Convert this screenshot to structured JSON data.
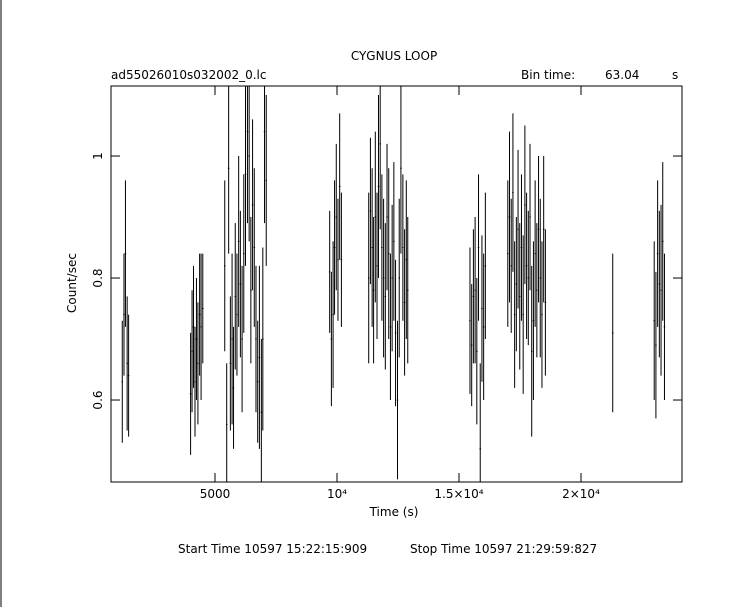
{
  "chart_data": {
    "type": "errorbar",
    "title": "CYGNUS LOOP",
    "file_label": "ad55026010s032002_0.lc",
    "bin_time_label": "Bin time:",
    "bin_time": 63.04,
    "bin_time_unit": "s",
    "x_label": "Time (s)",
    "y_label": "Count/sec",
    "start_time": "Start Time 10597  15:22:15:909",
    "stop_time": "Stop Time 10597  21:29:59:827",
    "color": "#000000",
    "xlim": [
      738,
      24139
    ],
    "ylim": [
      0.4656,
      1.1148
    ],
    "xticks": [
      5000,
      {
        "value": 10000,
        "label": "10⁴"
      },
      {
        "value": 15000,
        "label": "1.5×10⁴"
      },
      {
        "value": 20000,
        "label": "2×10⁴"
      }
    ],
    "yticks": [
      0.6,
      0.8,
      1
    ],
    "x": [
      1200,
      1270,
      1330,
      1400,
      1460,
      4000,
      4060,
      4120,
      4180,
      4240,
      4300,
      4370,
      4430,
      4500,
      5400,
      5480,
      5560,
      5630,
      5700,
      5760,
      5830,
      5900,
      5970,
      6040,
      6110,
      6180,
      6250,
      6330,
      6400,
      6470,
      6540,
      6610,
      6680,
      6750,
      6820,
      6900,
      6960,
      7030,
      7100,
      9700,
      9770,
      9840,
      9900,
      9970,
      10040,
      10110,
      10180,
      11300,
      11370,
      11440,
      11500,
      11570,
      11640,
      11700,
      11770,
      11840,
      11910,
      11980,
      12050,
      12120,
      12190,
      12260,
      12330,
      12400,
      12480,
      12550,
      12620,
      12700,
      12770,
      12840,
      12900,
      15450,
      15520,
      15590,
      15660,
      15730,
      15800,
      15870,
      15940,
      16010,
      16080,
      17000,
      17070,
      17140,
      17210,
      17280,
      17350,
      17420,
      17490,
      17560,
      17630,
      17700,
      17770,
      17840,
      17910,
      17980,
      18050,
      18120,
      18190,
      18260,
      18330,
      18400,
      18470,
      18540,
      21300,
      23000,
      23070,
      23140,
      23210,
      23280,
      23350,
      23420
    ],
    "values": [
      0.63,
      0.74,
      0.84,
      0.66,
      0.64,
      0.61,
      0.68,
      0.72,
      0.63,
      0.7,
      0.66,
      0.74,
      0.72,
      0.75,
      0.82,
      0.56,
      0.98,
      0.66,
      0.7,
      0.62,
      0.77,
      0.74,
      0.86,
      0.79,
      0.7,
      0.84,
      0.97,
      1.04,
      1.0,
      0.78,
      0.92,
      0.85,
      0.7,
      0.63,
      0.67,
      0.58,
      0.7,
      1.04,
      0.96,
      0.81,
      0.7,
      0.74,
      0.85,
      0.9,
      0.83,
      0.95,
      0.83,
      0.8,
      0.91,
      0.85,
      0.78,
      0.9,
      0.82,
      0.95,
      1.02,
      0.85,
      0.8,
      0.77,
      0.9,
      0.84,
      0.72,
      0.8,
      0.86,
      0.71,
      0.6,
      0.8,
      0.98,
      0.85,
      0.76,
      0.83,
      0.78,
      0.73,
      0.69,
      0.77,
      0.78,
      0.68,
      0.85,
      0.52,
      0.75,
      0.72,
      0.82,
      0.84,
      0.9,
      0.82,
      0.94,
      0.74,
      0.79,
      0.88,
      0.77,
      0.85,
      0.74,
      0.92,
      0.82,
      0.8,
      0.9,
      0.68,
      0.73,
      0.84,
      0.78,
      0.88,
      0.8,
      0.74,
      0.88,
      0.76,
      0.71,
      0.73,
      0.69,
      0.84,
      0.79,
      0.78,
      0.86,
      0.72
    ],
    "errors": [
      0.1,
      0.1,
      0.12,
      0.11,
      0.1,
      0.1,
      0.1,
      0.1,
      0.09,
      0.1,
      0.1,
      0.1,
      0.12,
      0.09,
      0.14,
      0.1,
      0.14,
      0.11,
      0.14,
      0.1,
      0.12,
      0.1,
      0.14,
      0.12,
      0.12,
      0.13,
      0.15,
      0.15,
      0.14,
      0.12,
      0.14,
      0.13,
      0.12,
      0.1,
      0.15,
      0.12,
      0.15,
      0.15,
      0.14,
      0.1,
      0.11,
      0.12,
      0.11,
      0.12,
      0.1,
      0.12,
      0.11,
      0.14,
      0.12,
      0.13,
      0.12,
      0.14,
      0.12,
      0.15,
      0.14,
      0.12,
      0.13,
      0.12,
      0.12,
      0.14,
      0.12,
      0.12,
      0.13,
      0.12,
      0.13,
      0.13,
      0.14,
      0.12,
      0.12,
      0.13,
      0.12,
      0.12,
      0.1,
      0.11,
      0.12,
      0.12,
      0.12,
      0.14,
      0.12,
      0.12,
      0.12,
      0.12,
      0.14,
      0.11,
      0.13,
      0.12,
      0.11,
      0.13,
      0.12,
      0.12,
      0.13,
      0.13,
      0.12,
      0.11,
      0.12,
      0.14,
      0.13,
      0.12,
      0.11,
      0.12,
      0.13,
      0.12,
      0.12,
      0.12,
      0.13,
      0.13,
      0.12,
      0.12,
      0.12,
      0.14,
      0.13,
      0.12
    ]
  }
}
